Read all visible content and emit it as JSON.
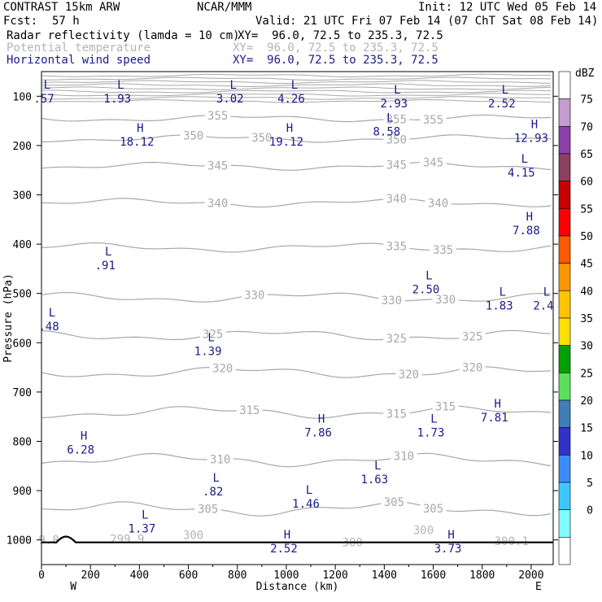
{
  "header": {
    "model": "CONTRAST 15km ARW",
    "org": "NCAR/MMM",
    "init": "Init: 12 UTC Wed 05 Feb 14",
    "fcst_label": "Fcst:",
    "fcst_value": "57 h",
    "valid": "Valid: 21 UTC Fri 07 Feb 14 (07 ChT Sat 08 Feb 14)",
    "fields": [
      {
        "name": "Radar reflectivity (lamda = 10 cm)",
        "xy": "XY=  96.0, 72.5 to 235.3, 72.5"
      },
      {
        "name": "Potential temperature",
        "xy": "XY=  96.0, 72.5 to 235.3, 72.5"
      },
      {
        "name": "Horizontal wind speed",
        "xy": "XY=  96.0, 72.5 to 235.3, 72.5"
      }
    ]
  },
  "chart_data": {
    "type": "cross-section",
    "xlabel": "Distance (km)",
    "ylabel": "Pressure (hPa)",
    "xlim": [
      0,
      2090
    ],
    "ylim": [
      1050,
      50
    ],
    "x_ticks": [
      0,
      200,
      400,
      600,
      800,
      1000,
      1200,
      1400,
      1600,
      1800,
      2000
    ],
    "y_ticks": [
      100,
      200,
      300,
      400,
      500,
      600,
      700,
      800,
      900,
      1000
    ],
    "end_labels": {
      "left": "W",
      "right": "E"
    },
    "colorbar": {
      "unit": "dBZ",
      "levels": [
        "75",
        "70",
        "65",
        "60",
        "55",
        "50",
        "45",
        "40",
        "35",
        "30",
        "25",
        "20",
        "15",
        "10",
        "5",
        "0"
      ],
      "colors": [
        "#ffffff",
        "#c49cd0",
        "#8e3fab",
        "#8b4060",
        "#c80000",
        "#ff0000",
        "#ff5a00",
        "#ff9600",
        "#ffc400",
        "#ffe000",
        "#00a000",
        "#5ae05a",
        "#3f7eb6",
        "#3232c8",
        "#3c8cff",
        "#3cc8ff",
        "#80ffff",
        "#ffffff"
      ]
    },
    "isentropes": [
      {
        "label": "355",
        "p": 145,
        "labels_at": [
          720,
          1450,
          1600
        ]
      },
      {
        "label": "350",
        "p": 186,
        "labels_at": [
          620,
          900,
          1450
        ]
      },
      {
        "label": "345",
        "p": 242,
        "labels_at": [
          720,
          1450,
          1600
        ]
      },
      {
        "label": "340",
        "p": 316,
        "labels_at": [
          720,
          1450,
          1620
        ]
      },
      {
        "label": "335",
        "p": 407,
        "labels_at": [
          1450,
          1640
        ]
      },
      {
        "label": "330",
        "p": 508,
        "labels_at": [
          870,
          1430,
          1650
        ]
      },
      {
        "label": "325",
        "p": 585,
        "labels_at": [
          700,
          1450,
          1760
        ]
      },
      {
        "label": "320",
        "p": 660,
        "labels_at": [
          740,
          1500,
          1760
        ]
      },
      {
        "label": "315",
        "p": 741,
        "labels_at": [
          850,
          1450,
          1650
        ]
      },
      {
        "label": "310",
        "p": 838,
        "labels_at": [
          730,
          1480
        ]
      },
      {
        "label": "305",
        "p": 937,
        "labels_at": [
          680,
          1440,
          1600
        ]
      }
    ],
    "surface_theta_labels": [
      {
        "text": "9.8",
        "x": 30,
        "p": 1000
      },
      {
        "text": "299.9",
        "x": 350,
        "p": 998
      },
      {
        "text": "300",
        "x": 620,
        "p": 990
      },
      {
        "text": "300",
        "x": 1270,
        "p": 1005
      },
      {
        "text": "300",
        "x": 1560,
        "p": 980
      },
      {
        "text": "300.1",
        "x": 1920,
        "p": 1002
      }
    ],
    "wind_extrema": [
      {
        "kind": "L",
        "value": ".57",
        "x": 10,
        "p": 98
      },
      {
        "kind": "L",
        "value": "1.93",
        "x": 310,
        "p": 98
      },
      {
        "kind": "L",
        "value": "3.02",
        "x": 770,
        "p": 98
      },
      {
        "kind": "L",
        "value": "4.26",
        "x": 1020,
        "p": 98
      },
      {
        "kind": "L",
        "value": "2.93",
        "x": 1440,
        "p": 108
      },
      {
        "kind": "L",
        "value": "2.52",
        "x": 1880,
        "p": 108
      },
      {
        "kind": "H",
        "value": "18.12",
        "x": 390,
        "p": 185
      },
      {
        "kind": "H",
        "value": "19.12",
        "x": 1000,
        "p": 185
      },
      {
        "kind": "L",
        "value": "8.58",
        "x": 1410,
        "p": 165
      },
      {
        "kind": "H",
        "value": "12.93",
        "x": 2000,
        "p": 178
      },
      {
        "kind": "L",
        "value": "4.15",
        "x": 1960,
        "p": 248
      },
      {
        "kind": "H",
        "value": "7.88",
        "x": 1980,
        "p": 365
      },
      {
        "kind": "L",
        "value": ".91",
        "x": 260,
        "p": 436
      },
      {
        "kind": "L",
        "value": "2.50",
        "x": 1570,
        "p": 485
      },
      {
        "kind": "L",
        "value": "1.83",
        "x": 1870,
        "p": 518
      },
      {
        "kind": "L",
        "value": "2.4",
        "x": 2050,
        "p": 518
      },
      {
        "kind": "L",
        "value": ".48",
        "x": 30,
        "p": 560
      },
      {
        "kind": "L",
        "value": "1.39",
        "x": 680,
        "p": 610
      },
      {
        "kind": "H",
        "value": "7.81",
        "x": 1850,
        "p": 745
      },
      {
        "kind": "H",
        "value": "7.86",
        "x": 1130,
        "p": 775
      },
      {
        "kind": "L",
        "value": "1.73",
        "x": 1590,
        "p": 775
      },
      {
        "kind": "H",
        "value": "6.28",
        "x": 160,
        "p": 810
      },
      {
        "kind": "L",
        "value": "1.63",
        "x": 1360,
        "p": 870
      },
      {
        "kind": "L",
        "value": ".82",
        "x": 700,
        "p": 895
      },
      {
        "kind": "L",
        "value": "1.46",
        "x": 1080,
        "p": 920
      },
      {
        "kind": "L",
        "value": "1.37",
        "x": 410,
        "p": 970
      },
      {
        "kind": "H",
        "value": "2.52",
        "x": 990,
        "p": 1010
      },
      {
        "kind": "H",
        "value": "3.73",
        "x": 1660,
        "p": 1010
      }
    ]
  }
}
